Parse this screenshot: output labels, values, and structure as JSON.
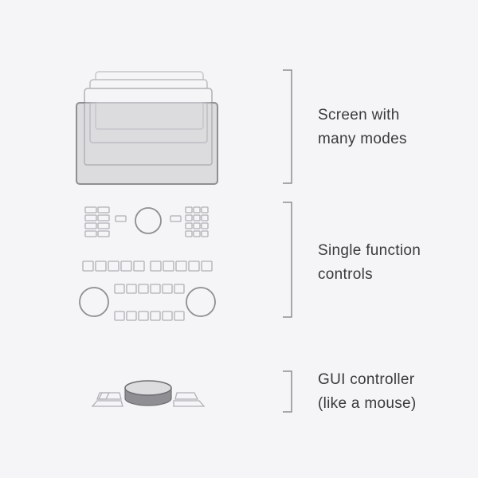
{
  "labels": {
    "screen": {
      "line1": "Screen with",
      "line2": "many modes"
    },
    "controls": {
      "line1": "Single function",
      "line2": "controls"
    },
    "gui": {
      "line1": "GUI controller",
      "line2": "(like a mouse)"
    }
  },
  "colors": {
    "background": "#f5f5f7",
    "stroke": "#8e8e93",
    "light_stroke": "#bdbdc2",
    "fill": "#dcdcdf",
    "text": "#3a3a3c"
  }
}
